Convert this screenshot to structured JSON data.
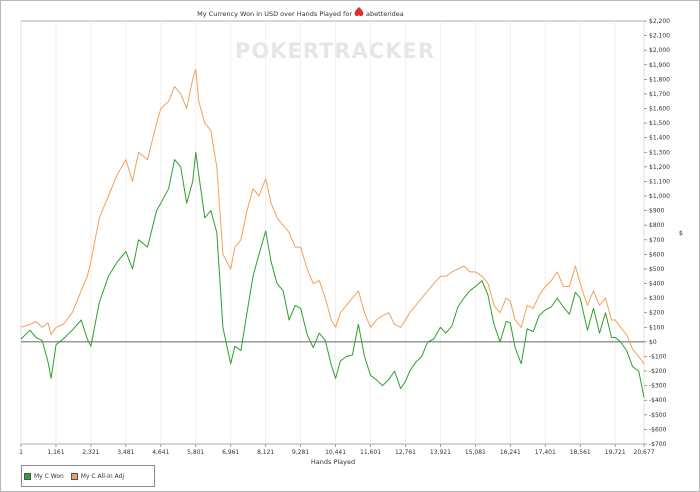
{
  "chart_data": {
    "type": "line",
    "title": "My Currency Won in USD over Hands Played for",
    "player_name": "abetteridea",
    "watermark": "POKERTRACKER",
    "xlabel": "Hands Played",
    "ylabel": "$",
    "xlim": [
      1,
      20677
    ],
    "ylim": [
      -700,
      2200
    ],
    "x_ticks": [
      1,
      1161,
      2321,
      3481,
      4641,
      5801,
      6961,
      8121,
      9281,
      10441,
      11601,
      12761,
      13921,
      15081,
      16241,
      17401,
      18561,
      19721,
      20677
    ],
    "x_tick_labels": [
      "1",
      "1,161",
      "2,321",
      "3,481",
      "4,641",
      "5,801",
      "6,961",
      "8,121",
      "9,281",
      "10,441",
      "11,601",
      "12,761",
      "13,921",
      "15,081",
      "16,241",
      "17,401",
      "18,561",
      "19,721",
      "20,677"
    ],
    "y_ticks": [
      2200,
      2100,
      2000,
      1900,
      1800,
      1700,
      1600,
      1500,
      1400,
      1300,
      1200,
      1100,
      1000,
      900,
      800,
      700,
      600,
      500,
      400,
      300,
      200,
      100,
      0,
      -100,
      -200,
      -300,
      -400,
      -500,
      -600,
      -700
    ],
    "y_tick_labels": [
      "$2,200",
      "$2,100",
      "$2,000",
      "$1,900",
      "$1,800",
      "$1,700",
      "$1,600",
      "$1,500",
      "$1,400",
      "$1,300",
      "$1,200",
      "$1,100",
      "$1,000",
      "$900",
      "$800",
      "$700",
      "$600",
      "$500",
      "$400",
      "$300",
      "$200",
      "$100",
      "$0",
      "-$100",
      "-$200",
      "-$300",
      "-$400",
      "-$500",
      "-$600",
      "-$700"
    ],
    "grid": "vertical",
    "legend_position": "bottom-left",
    "series": [
      {
        "name": "My C Won",
        "color": "#2ca02c",
        "x": [
          1,
          300,
          500,
          700,
          900,
          1000,
          1161,
          1400,
          1700,
          2000,
          2200,
          2321,
          2600,
          2900,
          3200,
          3481,
          3700,
          3900,
          4200,
          4500,
          4641,
          4900,
          5100,
          5300,
          5500,
          5700,
          5801,
          5900,
          6100,
          6300,
          6500,
          6700,
          6961,
          7100,
          7300,
          7500,
          7700,
          7900,
          8121,
          8300,
          8500,
          8700,
          8900,
          9100,
          9281,
          9500,
          9700,
          9900,
          10100,
          10300,
          10441,
          10600,
          10800,
          11000,
          11200,
          11400,
          11601,
          11800,
          12000,
          12200,
          12400,
          12600,
          12761,
          12900,
          13100,
          13300,
          13500,
          13700,
          13921,
          14100,
          14300,
          14500,
          14700,
          14900,
          15081,
          15300,
          15500,
          15700,
          15900,
          16100,
          16241,
          16400,
          16600,
          16800,
          17000,
          17200,
          17401,
          17600,
          17800,
          18000,
          18200,
          18400,
          18561,
          18800,
          19000,
          19200,
          19400,
          19600,
          19721,
          19900,
          20100,
          20300,
          20500,
          20677
        ],
        "y": [
          20,
          80,
          30,
          10,
          -140,
          -250,
          -20,
          20,
          80,
          150,
          20,
          -30,
          270,
          450,
          550,
          620,
          500,
          700,
          650,
          900,
          950,
          1050,
          1250,
          1200,
          950,
          1100,
          1300,
          1150,
          850,
          900,
          750,
          100,
          -150,
          -30,
          -60,
          200,
          450,
          600,
          760,
          550,
          400,
          350,
          150,
          250,
          230,
          50,
          -40,
          60,
          10,
          -160,
          -250,
          -130,
          -100,
          -90,
          120,
          -100,
          -230,
          -260,
          -300,
          -260,
          -200,
          -320,
          -270,
          -200,
          -140,
          -100,
          0,
          20,
          100,
          60,
          110,
          240,
          300,
          350,
          380,
          420,
          320,
          120,
          0,
          140,
          130,
          -40,
          -150,
          90,
          70,
          180,
          220,
          240,
          300,
          240,
          190,
          340,
          300,
          80,
          230,
          60,
          200,
          30,
          30,
          0,
          -60,
          -170,
          -200,
          -380
        ]
      },
      {
        "name": "My C All-In Adj",
        "color": "#f4a05a",
        "x": [
          1,
          300,
          500,
          700,
          900,
          1000,
          1161,
          1400,
          1700,
          2000,
          2200,
          2321,
          2600,
          2900,
          3200,
          3481,
          3700,
          3900,
          4200,
          4500,
          4641,
          4900,
          5100,
          5300,
          5500,
          5700,
          5801,
          5900,
          6100,
          6300,
          6500,
          6700,
          6961,
          7100,
          7300,
          7500,
          7700,
          7900,
          8121,
          8300,
          8500,
          8700,
          8900,
          9100,
          9281,
          9500,
          9700,
          9900,
          10100,
          10300,
          10441,
          10600,
          10800,
          11000,
          11200,
          11400,
          11601,
          11800,
          12000,
          12200,
          12400,
          12600,
          12761,
          12900,
          13100,
          13300,
          13500,
          13700,
          13921,
          14100,
          14300,
          14500,
          14700,
          14900,
          15081,
          15300,
          15500,
          15700,
          15900,
          16100,
          16241,
          16400,
          16600,
          16800,
          17000,
          17200,
          17401,
          17600,
          17800,
          18000,
          18200,
          18400,
          18561,
          18800,
          19000,
          19200,
          19400,
          19600,
          19721,
          19900,
          20100,
          20300,
          20500,
          20677
        ],
        "y": [
          100,
          120,
          140,
          100,
          130,
          50,
          100,
          120,
          200,
          350,
          450,
          550,
          850,
          1000,
          1150,
          1250,
          1100,
          1300,
          1250,
          1500,
          1600,
          1650,
          1750,
          1700,
          1600,
          1800,
          1870,
          1650,
          1500,
          1450,
          1200,
          600,
          500,
          650,
          700,
          900,
          1050,
          1000,
          1120,
          950,
          850,
          800,
          750,
          650,
          650,
          500,
          400,
          420,
          300,
          150,
          100,
          200,
          250,
          300,
          350,
          200,
          100,
          150,
          180,
          200,
          120,
          100,
          150,
          200,
          250,
          300,
          350,
          400,
          450,
          450,
          480,
          500,
          520,
          480,
          480,
          450,
          400,
          250,
          200,
          300,
          280,
          150,
          100,
          250,
          230,
          320,
          380,
          420,
          480,
          380,
          380,
          520,
          400,
          250,
          350,
          250,
          300,
          150,
          150,
          100,
          50,
          -50,
          -100,
          -150
        ]
      }
    ]
  }
}
